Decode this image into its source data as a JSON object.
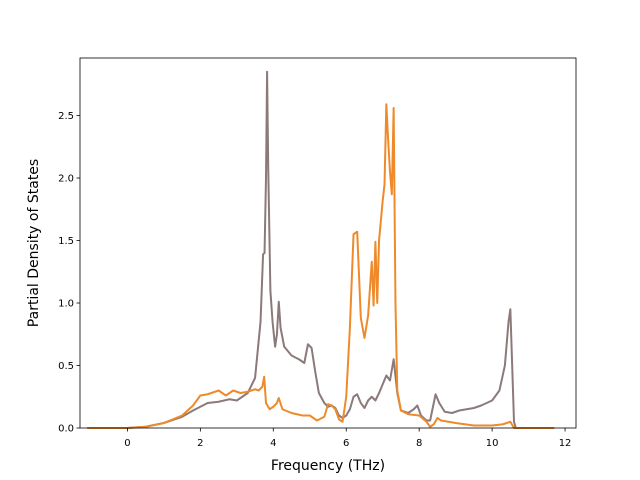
{
  "chart_data": {
    "type": "line",
    "title": "",
    "xlabel": "Frequency (THz)",
    "ylabel": "Partial Density of States",
    "xlim": [
      -1.3,
      12.3
    ],
    "ylim": [
      0,
      2.96
    ],
    "xticks": [
      0,
      2,
      4,
      6,
      8,
      10,
      12
    ],
    "yticks": [
      0.0,
      0.5,
      1.0,
      1.5,
      2.0,
      2.5
    ],
    "xtick_labels": [
      "0",
      "2",
      "4",
      "6",
      "8",
      "10",
      "12"
    ],
    "ytick_labels": [
      "0.0",
      "0.5",
      "1.0",
      "1.5",
      "2.0",
      "2.5"
    ],
    "grid": false,
    "legend": "none",
    "series": [
      {
        "color": "#8c7a7a",
        "points": [
          [
            -1.1,
            0
          ],
          [
            0.0,
            0.0
          ],
          [
            0.5,
            0.01
          ],
          [
            1.0,
            0.04
          ],
          [
            1.5,
            0.09
          ],
          [
            1.8,
            0.14
          ],
          [
            2.0,
            0.17
          ],
          [
            2.2,
            0.2
          ],
          [
            2.5,
            0.21
          ],
          [
            2.8,
            0.23
          ],
          [
            3.0,
            0.22
          ],
          [
            3.3,
            0.28
          ],
          [
            3.5,
            0.4
          ],
          [
            3.65,
            0.85
          ],
          [
            3.72,
            1.39
          ],
          [
            3.76,
            1.4
          ],
          [
            3.8,
            2.0
          ],
          [
            3.83,
            2.85
          ],
          [
            3.86,
            2.1
          ],
          [
            3.92,
            1.1
          ],
          [
            3.98,
            0.85
          ],
          [
            4.05,
            0.65
          ],
          [
            4.1,
            0.75
          ],
          [
            4.15,
            1.01
          ],
          [
            4.2,
            0.8
          ],
          [
            4.3,
            0.65
          ],
          [
            4.5,
            0.58
          ],
          [
            4.7,
            0.55
          ],
          [
            4.85,
            0.52
          ],
          [
            4.95,
            0.67
          ],
          [
            5.05,
            0.64
          ],
          [
            5.15,
            0.45
          ],
          [
            5.25,
            0.28
          ],
          [
            5.4,
            0.2
          ],
          [
            5.5,
            0.17
          ],
          [
            5.6,
            0.18
          ],
          [
            5.7,
            0.16
          ],
          [
            5.8,
            0.1
          ],
          [
            5.9,
            0.08
          ],
          [
            6.0,
            0.1
          ],
          [
            6.1,
            0.15
          ],
          [
            6.2,
            0.25
          ],
          [
            6.3,
            0.27
          ],
          [
            6.4,
            0.2
          ],
          [
            6.5,
            0.16
          ],
          [
            6.6,
            0.22
          ],
          [
            6.7,
            0.25
          ],
          [
            6.8,
            0.22
          ],
          [
            6.9,
            0.28
          ],
          [
            7.0,
            0.35
          ],
          [
            7.1,
            0.42
          ],
          [
            7.2,
            0.38
          ],
          [
            7.3,
            0.55
          ],
          [
            7.4,
            0.28
          ],
          [
            7.5,
            0.14
          ],
          [
            7.7,
            0.12
          ],
          [
            7.85,
            0.15
          ],
          [
            7.95,
            0.18
          ],
          [
            8.05,
            0.1
          ],
          [
            8.2,
            0.06
          ],
          [
            8.3,
            0.06
          ],
          [
            8.45,
            0.27
          ],
          [
            8.55,
            0.2
          ],
          [
            8.7,
            0.13
          ],
          [
            8.9,
            0.12
          ],
          [
            9.1,
            0.14
          ],
          [
            9.3,
            0.15
          ],
          [
            9.5,
            0.16
          ],
          [
            9.7,
            0.18
          ],
          [
            10.0,
            0.22
          ],
          [
            10.2,
            0.3
          ],
          [
            10.35,
            0.5
          ],
          [
            10.45,
            0.85
          ],
          [
            10.5,
            0.95
          ],
          [
            10.55,
            0.5
          ],
          [
            10.6,
            0.05
          ],
          [
            10.65,
            0.0
          ],
          [
            11.7,
            0.0
          ]
        ]
      },
      {
        "color": "#ee8a2a",
        "points": [
          [
            -1.1,
            0
          ],
          [
            0.0,
            0.0
          ],
          [
            0.5,
            0.01
          ],
          [
            1.0,
            0.04
          ],
          [
            1.5,
            0.1
          ],
          [
            1.8,
            0.18
          ],
          [
            2.0,
            0.26
          ],
          [
            2.2,
            0.27
          ],
          [
            2.5,
            0.3
          ],
          [
            2.7,
            0.26
          ],
          [
            2.9,
            0.3
          ],
          [
            3.1,
            0.28
          ],
          [
            3.3,
            0.29
          ],
          [
            3.5,
            0.31
          ],
          [
            3.6,
            0.3
          ],
          [
            3.7,
            0.33
          ],
          [
            3.75,
            0.41
          ],
          [
            3.8,
            0.2
          ],
          [
            3.9,
            0.15
          ],
          [
            4.0,
            0.17
          ],
          [
            4.1,
            0.2
          ],
          [
            4.15,
            0.24
          ],
          [
            4.25,
            0.15
          ],
          [
            4.5,
            0.12
          ],
          [
            4.8,
            0.1
          ],
          [
            5.0,
            0.1
          ],
          [
            5.2,
            0.06
          ],
          [
            5.4,
            0.09
          ],
          [
            5.5,
            0.19
          ],
          [
            5.6,
            0.18
          ],
          [
            5.7,
            0.15
          ],
          [
            5.8,
            0.07
          ],
          [
            5.9,
            0.05
          ],
          [
            6.0,
            0.25
          ],
          [
            6.1,
            0.8
          ],
          [
            6.2,
            1.55
          ],
          [
            6.3,
            1.57
          ],
          [
            6.4,
            0.88
          ],
          [
            6.5,
            0.72
          ],
          [
            6.6,
            0.9
          ],
          [
            6.7,
            1.33
          ],
          [
            6.75,
            0.98
          ],
          [
            6.8,
            1.49
          ],
          [
            6.85,
            1.0
          ],
          [
            6.9,
            1.5
          ],
          [
            7.0,
            1.82
          ],
          [
            7.05,
            1.95
          ],
          [
            7.1,
            2.59
          ],
          [
            7.15,
            2.3
          ],
          [
            7.2,
            2.05
          ],
          [
            7.25,
            1.87
          ],
          [
            7.3,
            2.56
          ],
          [
            7.35,
            1.0
          ],
          [
            7.4,
            0.3
          ],
          [
            7.5,
            0.14
          ],
          [
            7.7,
            0.11
          ],
          [
            8.0,
            0.1
          ],
          [
            8.2,
            0.05
          ],
          [
            8.3,
            0.01
          ],
          [
            8.4,
            0.03
          ],
          [
            8.5,
            0.08
          ],
          [
            8.6,
            0.06
          ],
          [
            9.0,
            0.04
          ],
          [
            9.5,
            0.02
          ],
          [
            10.0,
            0.02
          ],
          [
            10.3,
            0.03
          ],
          [
            10.5,
            0.05
          ],
          [
            10.6,
            0.0
          ],
          [
            11.7,
            0.0
          ]
        ]
      }
    ]
  }
}
